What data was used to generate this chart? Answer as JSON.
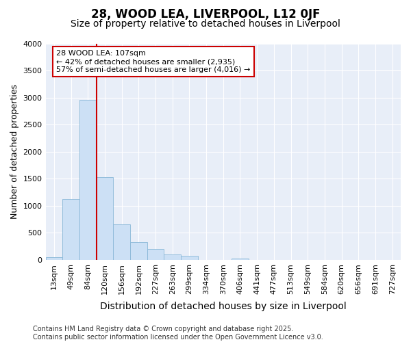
{
  "title_line1": "28, WOOD LEA, LIVERPOOL, L12 0JF",
  "title_line2": "Size of property relative to detached houses in Liverpool",
  "xlabel": "Distribution of detached houses by size in Liverpool",
  "ylabel": "Number of detached properties",
  "categories": [
    "13sqm",
    "49sqm",
    "84sqm",
    "120sqm",
    "156sqm",
    "192sqm",
    "227sqm",
    "263sqm",
    "299sqm",
    "334sqm",
    "370sqm",
    "406sqm",
    "441sqm",
    "477sqm",
    "513sqm",
    "549sqm",
    "584sqm",
    "620sqm",
    "656sqm",
    "691sqm",
    "727sqm"
  ],
  "values": [
    55,
    1120,
    2960,
    1530,
    660,
    330,
    205,
    100,
    75,
    0,
    0,
    30,
    0,
    0,
    0,
    0,
    0,
    0,
    0,
    0,
    0
  ],
  "bar_color": "#cce0f5",
  "bar_edge_color": "#8ab8d8",
  "vline_color": "#cc0000",
  "vline_x": 2.5,
  "annotation_text": "28 WOOD LEA: 107sqm\n← 42% of detached houses are smaller (2,935)\n57% of semi-detached houses are larger (4,016) →",
  "annotation_box_facecolor": "#ffffff",
  "annotation_box_edgecolor": "#cc0000",
  "ylim": [
    0,
    4000
  ],
  "yticks": [
    0,
    500,
    1000,
    1500,
    2000,
    2500,
    3000,
    3500,
    4000
  ],
  "background_color": "#e8eef8",
  "grid_color": "#ffffff",
  "footnote": "Contains HM Land Registry data © Crown copyright and database right 2025.\nContains public sector information licensed under the Open Government Licence v3.0.",
  "title_fontsize": 12,
  "subtitle_fontsize": 10,
  "ylabel_fontsize": 9,
  "xlabel_fontsize": 10,
  "tick_fontsize": 8,
  "annotation_fontsize": 8,
  "footnote_fontsize": 7
}
